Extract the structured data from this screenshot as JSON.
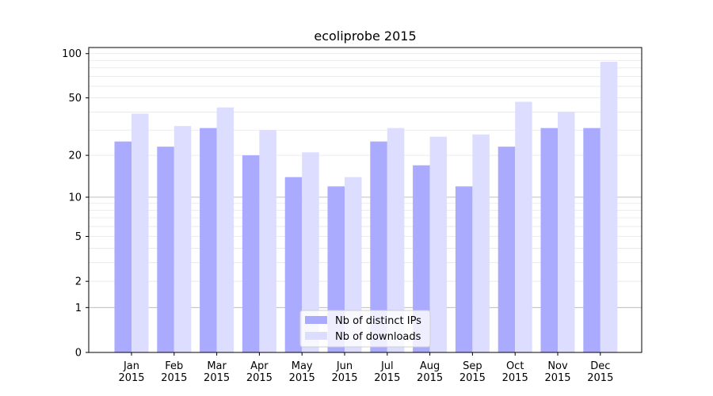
{
  "chart_data": {
    "type": "bar",
    "title": "ecoliprobe 2015",
    "xlabel": "",
    "ylabel": "",
    "yscale": "symlog",
    "ylim": [
      0,
      110
    ],
    "grid": "y-major-and-minor",
    "legend_position": "bottom-center",
    "categories": [
      [
        "Jan",
        "2015"
      ],
      [
        "Feb",
        "2015"
      ],
      [
        "Mar",
        "2015"
      ],
      [
        "Apr",
        "2015"
      ],
      [
        "May",
        "2015"
      ],
      [
        "Jun",
        "2015"
      ],
      [
        "Jul",
        "2015"
      ],
      [
        "Aug",
        "2015"
      ],
      [
        "Sep",
        "2015"
      ],
      [
        "Oct",
        "2015"
      ],
      [
        "Nov",
        "2015"
      ],
      [
        "Dec",
        "2015"
      ]
    ],
    "y_ticks": [
      "0",
      "1",
      "2",
      "5",
      "10",
      "20",
      "50",
      "100"
    ],
    "series": [
      {
        "name": "Nb of distinct IPs",
        "color": "#aaaaff",
        "values": [
          25,
          23,
          31,
          20,
          14,
          12,
          25,
          17,
          12,
          23,
          31,
          31
        ]
      },
      {
        "name": "Nb of downloads",
        "color": "#ddddff",
        "values": [
          39,
          32,
          43,
          30,
          21,
          14,
          31,
          27,
          28,
          47,
          40,
          88
        ]
      }
    ]
  }
}
